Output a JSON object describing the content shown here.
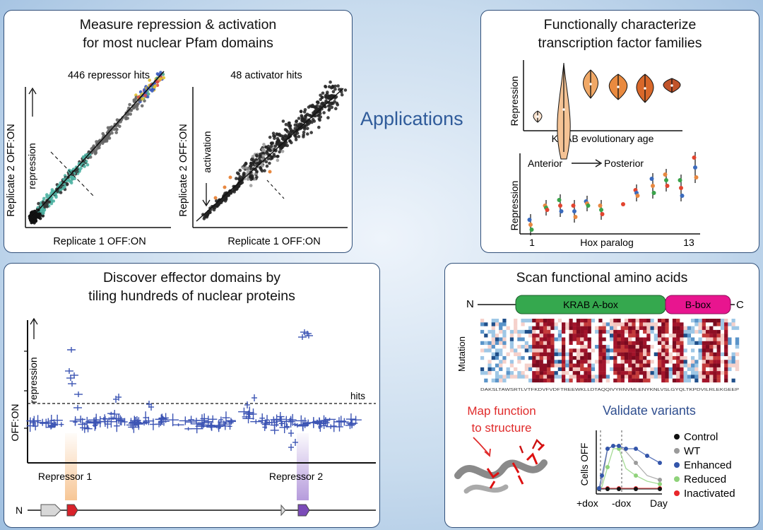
{
  "center": {
    "label": "Applications"
  },
  "panel_a": {
    "title_line1": "Measure repression & activation",
    "title_line2": "for most nuclear Pfam domains",
    "left_plot": {
      "title": "446 repressor hits",
      "ylabel": "Replicate 2 OFF:ON",
      "xlabel": "Replicate 1 OFF:ON",
      "arrow_label": "repression"
    },
    "right_plot": {
      "title": "48 activator hits",
      "ylabel": "Replicate 2 OFF:ON",
      "xlabel": "Replicate 1 OFF:ON",
      "arrow_label": "activation"
    }
  },
  "panel_b": {
    "title_line1": "Functionally characterize",
    "title_line2": "transcription factor families",
    "violin": {
      "ylabel": "Repression",
      "xlabel": "KRAB evolutionary age",
      "colors": [
        "#fbe4cf",
        "#f5c395",
        "#f0a866",
        "#e98a3f",
        "#d9682a",
        "#c1542a"
      ]
    },
    "hox": {
      "ylabel": "Repression",
      "xlabel": "Hox paralog",
      "x_start": "1",
      "x_end": "13",
      "anterior": "Anterior",
      "posterior": "Posterior"
    }
  },
  "panel_c": {
    "title_line1": "Discover effector domains by",
    "title_line2": "tiling hundreds of nuclear proteins",
    "ylabel": "OFF:ON",
    "arrow_label": "repression",
    "hits_label": "hits",
    "repressor1": "Repressor 1",
    "repressor2": "Repressor 2",
    "n_label": "N"
  },
  "panel_d": {
    "title": "Scan functional amino acids",
    "n_label": "N",
    "c_label": "C",
    "krab_a": "KRAB A-box",
    "krab_b": "B-box",
    "mutation_label": "Mutation",
    "sequence": "DAKSLTAWSRTLVTFKDVFVDFTREEWKLLDTAQQIVYRNVMLENYKNLVSLGYQLTKPDVILRLEKGEEP",
    "map_line1": "Map function",
    "map_line2": "to structure",
    "validate": "Validate variants",
    "cells_label": "Cells OFF",
    "x_labels": [
      "+dox",
      "-dox",
      "Day"
    ],
    "legend": [
      {
        "label": "Control",
        "color": "#111111"
      },
      {
        "label": "WT",
        "color": "#9a9a9a"
      },
      {
        "label": "Enhanced",
        "color": "#3355aa"
      },
      {
        "label": "Reduced",
        "color": "#8fd27a"
      },
      {
        "label": "Inactivated",
        "color": "#e8262a"
      }
    ]
  }
}
